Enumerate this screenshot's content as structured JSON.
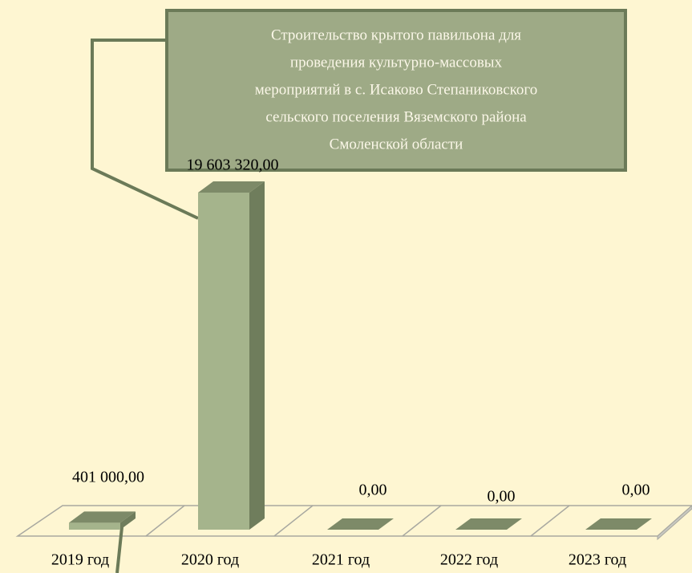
{
  "chart_data": {
    "type": "bar",
    "categories": [
      "2019 год",
      "2020 год",
      "2021 год",
      "2022 год",
      "2023 год"
    ],
    "values": [
      401000,
      19603320,
      0,
      0,
      0
    ],
    "value_labels": [
      "401 000,00",
      "19 603 320,00",
      "0,00",
      "0,00",
      "0,00"
    ],
    "color": "#a5b48c",
    "annotation": [
      "Строительство крытого павильона для",
      "проведения культурно-массовых",
      "мероприятий в с. Исаково Степаниковского",
      "сельского поселения Вяземского района",
      "Смоленской области"
    ]
  }
}
